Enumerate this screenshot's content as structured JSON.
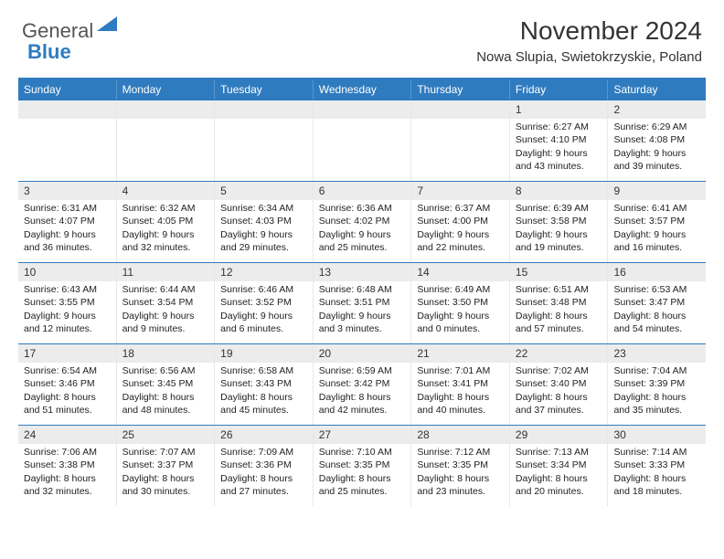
{
  "logo": {
    "word1": "General",
    "word2": "Blue"
  },
  "title": "November 2024",
  "location": "Nowa Slupia, Swietokrzyskie, Poland",
  "colors": {
    "accent": "#2f7bbf",
    "header_text": "#ffffff",
    "bg": "#ffffff",
    "daynum_bg": "#ececec",
    "text": "#222222"
  },
  "calendar": {
    "columns": [
      "Sunday",
      "Monday",
      "Tuesday",
      "Wednesday",
      "Thursday",
      "Friday",
      "Saturday"
    ],
    "weeks": [
      [
        null,
        null,
        null,
        null,
        null,
        {
          "n": "1",
          "sr": "6:27 AM",
          "ss": "4:10 PM",
          "dh": "9",
          "dm": "43"
        },
        {
          "n": "2",
          "sr": "6:29 AM",
          "ss": "4:08 PM",
          "dh": "9",
          "dm": "39"
        }
      ],
      [
        {
          "n": "3",
          "sr": "6:31 AM",
          "ss": "4:07 PM",
          "dh": "9",
          "dm": "36"
        },
        {
          "n": "4",
          "sr": "6:32 AM",
          "ss": "4:05 PM",
          "dh": "9",
          "dm": "32"
        },
        {
          "n": "5",
          "sr": "6:34 AM",
          "ss": "4:03 PM",
          "dh": "9",
          "dm": "29"
        },
        {
          "n": "6",
          "sr": "6:36 AM",
          "ss": "4:02 PM",
          "dh": "9",
          "dm": "25"
        },
        {
          "n": "7",
          "sr": "6:37 AM",
          "ss": "4:00 PM",
          "dh": "9",
          "dm": "22"
        },
        {
          "n": "8",
          "sr": "6:39 AM",
          "ss": "3:58 PM",
          "dh": "9",
          "dm": "19"
        },
        {
          "n": "9",
          "sr": "6:41 AM",
          "ss": "3:57 PM",
          "dh": "9",
          "dm": "16"
        }
      ],
      [
        {
          "n": "10",
          "sr": "6:43 AM",
          "ss": "3:55 PM",
          "dh": "9",
          "dm": "12"
        },
        {
          "n": "11",
          "sr": "6:44 AM",
          "ss": "3:54 PM",
          "dh": "9",
          "dm": "9"
        },
        {
          "n": "12",
          "sr": "6:46 AM",
          "ss": "3:52 PM",
          "dh": "9",
          "dm": "6"
        },
        {
          "n": "13",
          "sr": "6:48 AM",
          "ss": "3:51 PM",
          "dh": "9",
          "dm": "3"
        },
        {
          "n": "14",
          "sr": "6:49 AM",
          "ss": "3:50 PM",
          "dh": "9",
          "dm": "0"
        },
        {
          "n": "15",
          "sr": "6:51 AM",
          "ss": "3:48 PM",
          "dh": "8",
          "dm": "57"
        },
        {
          "n": "16",
          "sr": "6:53 AM",
          "ss": "3:47 PM",
          "dh": "8",
          "dm": "54"
        }
      ],
      [
        {
          "n": "17",
          "sr": "6:54 AM",
          "ss": "3:46 PM",
          "dh": "8",
          "dm": "51"
        },
        {
          "n": "18",
          "sr": "6:56 AM",
          "ss": "3:45 PM",
          "dh": "8",
          "dm": "48"
        },
        {
          "n": "19",
          "sr": "6:58 AM",
          "ss": "3:43 PM",
          "dh": "8",
          "dm": "45"
        },
        {
          "n": "20",
          "sr": "6:59 AM",
          "ss": "3:42 PM",
          "dh": "8",
          "dm": "42"
        },
        {
          "n": "21",
          "sr": "7:01 AM",
          "ss": "3:41 PM",
          "dh": "8",
          "dm": "40"
        },
        {
          "n": "22",
          "sr": "7:02 AM",
          "ss": "3:40 PM",
          "dh": "8",
          "dm": "37"
        },
        {
          "n": "23",
          "sr": "7:04 AM",
          "ss": "3:39 PM",
          "dh": "8",
          "dm": "35"
        }
      ],
      [
        {
          "n": "24",
          "sr": "7:06 AM",
          "ss": "3:38 PM",
          "dh": "8",
          "dm": "32"
        },
        {
          "n": "25",
          "sr": "7:07 AM",
          "ss": "3:37 PM",
          "dh": "8",
          "dm": "30"
        },
        {
          "n": "26",
          "sr": "7:09 AM",
          "ss": "3:36 PM",
          "dh": "8",
          "dm": "27"
        },
        {
          "n": "27",
          "sr": "7:10 AM",
          "ss": "3:35 PM",
          "dh": "8",
          "dm": "25"
        },
        {
          "n": "28",
          "sr": "7:12 AM",
          "ss": "3:35 PM",
          "dh": "8",
          "dm": "23"
        },
        {
          "n": "29",
          "sr": "7:13 AM",
          "ss": "3:34 PM",
          "dh": "8",
          "dm": "20"
        },
        {
          "n": "30",
          "sr": "7:14 AM",
          "ss": "3:33 PM",
          "dh": "8",
          "dm": "18"
        }
      ]
    ]
  },
  "labels": {
    "sunrise": "Sunrise:",
    "sunset": "Sunset:",
    "daylight": "Daylight:",
    "hours_and": "hours and",
    "minutes": "minutes."
  }
}
